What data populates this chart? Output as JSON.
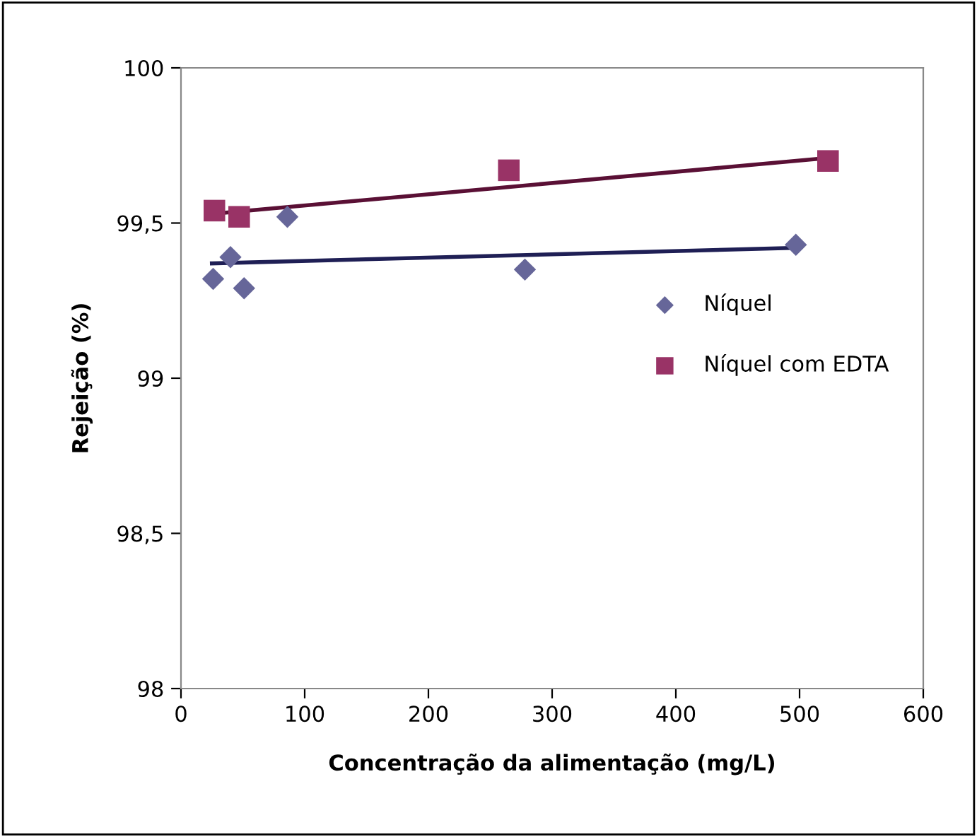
{
  "chart_data": {
    "type": "scatter",
    "xlabel": "Concentração da alimentação (mg/L)",
    "ylabel": "Rejeição (%)",
    "xlim": [
      0,
      600
    ],
    "xticks": [
      0,
      100,
      200,
      300,
      400,
      500,
      600
    ],
    "ylim": [
      98,
      100
    ],
    "yticks": [
      98,
      {
        "value": 98.5,
        "label": "98,5"
      },
      99,
      {
        "value": 99.5,
        "label": "99,5"
      },
      100
    ],
    "grid": false,
    "legend": "right",
    "series": [
      {
        "name": "Níquel",
        "color": "#666699",
        "marker": "diamond",
        "x": [
          26,
          40,
          51,
          86,
          278,
          497
        ],
        "values": [
          99.32,
          99.39,
          99.29,
          99.52,
          99.35,
          99.43
        ]
      },
      {
        "name": "Níquel com EDTA",
        "color": "#993366",
        "marker": "square",
        "x": [
          27,
          47,
          265,
          523
        ],
        "values": [
          99.54,
          99.52,
          99.67,
          99.7
        ]
      },
      {
        "type": "line",
        "color": "#1f1f55",
        "marker": "none",
        "x": [
          25,
          497
        ],
        "values": [
          99.37,
          99.42
        ]
      },
      {
        "type": "line",
        "color": "#5a1035",
        "marker": "none",
        "x": [
          27,
          524
        ],
        "values": [
          99.53,
          99.71
        ]
      }
    ]
  }
}
